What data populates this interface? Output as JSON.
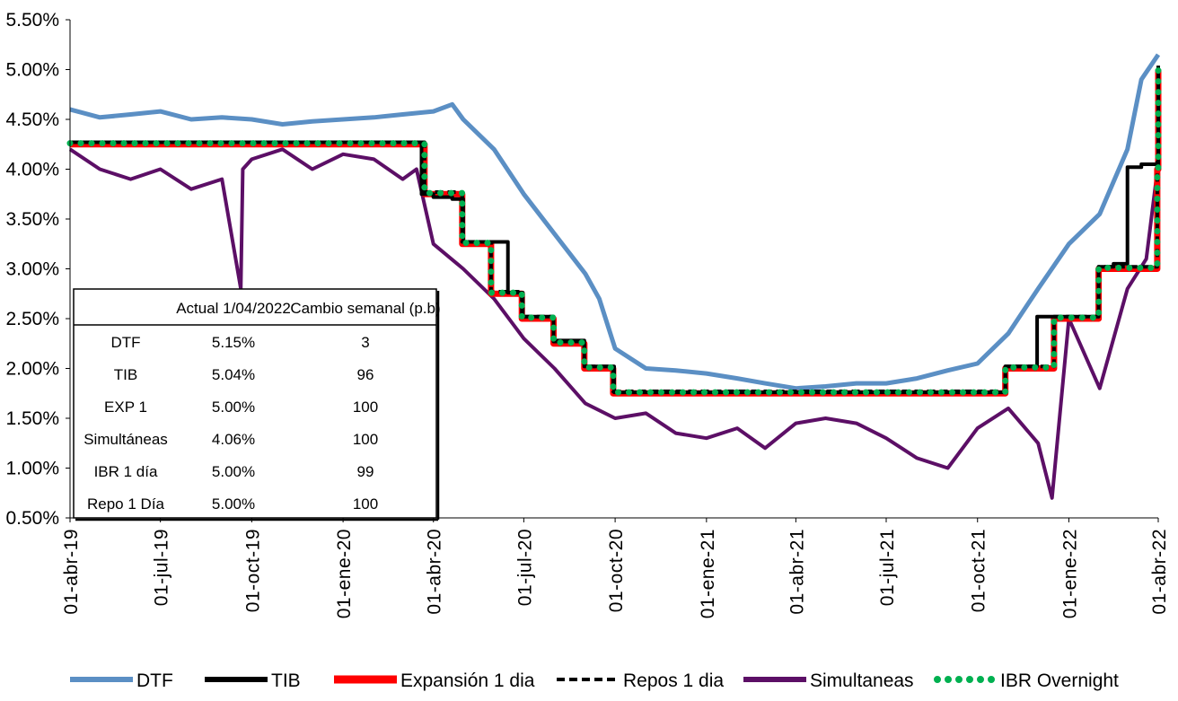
{
  "chart_data": {
    "type": "line",
    "yticks": [
      "5.50%",
      "5.00%",
      "4.50%",
      "4.00%",
      "3.50%",
      "3.00%",
      "2.50%",
      "2.00%",
      "1.50%",
      "1.00%",
      "0.50%"
    ],
    "ylim": [
      0.5,
      5.5
    ],
    "xlim": [
      "2019-04-01",
      "2022-04-01"
    ],
    "xticks": [
      {
        "label": "01-abr-19",
        "date": "2019-04-01"
      },
      {
        "label": "01-jul-19",
        "date": "2019-07-01"
      },
      {
        "label": "01-oct-19",
        "date": "2019-10-01"
      },
      {
        "label": "01-ene-20",
        "date": "2020-01-01"
      },
      {
        "label": "01-abr-20",
        "date": "2020-04-01"
      },
      {
        "label": "01-jul-20",
        "date": "2020-07-01"
      },
      {
        "label": "01-oct-20",
        "date": "2020-10-01"
      },
      {
        "label": "01-ene-21",
        "date": "2021-01-01"
      },
      {
        "label": "01-abr-21",
        "date": "2021-04-01"
      },
      {
        "label": "01-jul-21",
        "date": "2021-07-01"
      },
      {
        "label": "01-oct-21",
        "date": "2021-10-01"
      },
      {
        "label": "01-ene-22",
        "date": "2022-01-01"
      },
      {
        "label": "01-abr-22",
        "date": "2022-04-01"
      }
    ],
    "series": [
      {
        "name": "DTF",
        "color": "#5b8fc4",
        "style": "solid",
        "x": [
          "2019-04-01",
          "2019-05-01",
          "2019-06-01",
          "2019-07-01",
          "2019-08-01",
          "2019-09-01",
          "2019-10-01",
          "2019-11-01",
          "2019-12-01",
          "2020-01-01",
          "2020-02-01",
          "2020-03-01",
          "2020-04-01",
          "2020-04-20",
          "2020-05-01",
          "2020-06-01",
          "2020-07-01",
          "2020-08-01",
          "2020-09-01",
          "2020-09-15",
          "2020-10-01",
          "2020-11-01",
          "2020-12-01",
          "2021-01-01",
          "2021-02-01",
          "2021-03-01",
          "2021-04-01",
          "2021-05-01",
          "2021-06-01",
          "2021-07-01",
          "2021-08-01",
          "2021-09-01",
          "2021-10-01",
          "2021-11-01",
          "2021-12-01",
          "2022-01-01",
          "2022-02-01",
          "2022-03-01",
          "2022-03-15",
          "2022-04-01"
        ],
        "values": [
          4.6,
          4.52,
          4.55,
          4.58,
          4.5,
          4.52,
          4.5,
          4.45,
          4.48,
          4.5,
          4.52,
          4.55,
          4.58,
          4.65,
          4.5,
          4.2,
          3.75,
          3.35,
          2.95,
          2.7,
          2.2,
          2.0,
          1.98,
          1.95,
          1.9,
          1.85,
          1.8,
          1.82,
          1.85,
          1.85,
          1.9,
          1.98,
          2.05,
          2.35,
          2.8,
          3.25,
          3.55,
          4.2,
          4.9,
          5.15
        ]
      },
      {
        "name": "TIB",
        "color": "#000000",
        "style": "solid",
        "x": [
          "2019-04-01",
          "2020-03-15",
          "2020-03-20",
          "2020-04-01",
          "2020-04-20",
          "2020-05-01",
          "2020-05-29",
          "2020-06-15",
          "2020-06-30",
          "2020-07-31",
          "2020-08-31",
          "2020-09-30",
          "2021-09-30",
          "2021-10-29",
          "2021-11-30",
          "2021-12-17",
          "2022-01-31",
          "2022-02-15",
          "2022-03-01",
          "2022-03-15",
          "2022-03-31",
          "2022-04-01"
        ],
        "values": [
          4.27,
          4.27,
          3.75,
          3.72,
          3.7,
          3.27,
          3.27,
          2.76,
          2.52,
          2.28,
          2.02,
          1.76,
          1.76,
          2.02,
          2.52,
          2.52,
          3.02,
          3.05,
          4.02,
          4.05,
          4.07,
          5.04
        ]
      },
      {
        "name": "Expansión 1 dia",
        "color": "#ff0000",
        "style": "solid",
        "x": [
          "2019-04-01",
          "2020-03-15",
          "2020-03-23",
          "2020-04-30",
          "2020-05-29",
          "2020-06-29",
          "2020-07-31",
          "2020-08-31",
          "2020-09-29",
          "2021-09-30",
          "2021-10-29",
          "2021-12-17",
          "2022-01-31",
          "2022-03-31",
          "2022-04-01"
        ],
        "values": [
          4.25,
          4.25,
          3.75,
          3.25,
          2.75,
          2.5,
          2.25,
          2.0,
          1.75,
          1.75,
          2.0,
          2.5,
          3.0,
          4.0,
          5.0
        ]
      },
      {
        "name": "Repos 1 dia",
        "color": "#000000",
        "style": "dashed",
        "x": [
          "2019-04-01",
          "2020-03-15",
          "2020-03-23",
          "2020-04-30",
          "2020-05-29",
          "2020-06-29",
          "2020-07-31",
          "2020-08-31",
          "2020-09-29",
          "2021-09-30",
          "2021-10-29",
          "2021-12-17",
          "2022-01-31",
          "2022-03-31",
          "2022-04-01"
        ],
        "values": [
          4.27,
          4.27,
          3.77,
          3.27,
          2.77,
          2.52,
          2.27,
          2.02,
          1.77,
          1.77,
          2.02,
          2.52,
          3.02,
          4.02,
          5.0
        ]
      },
      {
        "name": "Simultaneas",
        "color": "#5c0f66",
        "style": "solid",
        "x": [
          "2019-04-01",
          "2019-05-01",
          "2019-06-01",
          "2019-07-01",
          "2019-08-01",
          "2019-09-01",
          "2019-09-20",
          "2019-09-22",
          "2019-10-01",
          "2019-11-01",
          "2019-12-01",
          "2020-01-01",
          "2020-02-01",
          "2020-03-01",
          "2020-03-15",
          "2020-04-01",
          "2020-05-01",
          "2020-06-01",
          "2020-07-01",
          "2020-08-01",
          "2020-09-01",
          "2020-10-01",
          "2020-11-01",
          "2020-12-01",
          "2021-01-01",
          "2021-02-01",
          "2021-03-01",
          "2021-04-01",
          "2021-05-01",
          "2021-06-01",
          "2021-07-01",
          "2021-08-01",
          "2021-09-01",
          "2021-10-01",
          "2021-11-01",
          "2021-12-01",
          "2021-12-15",
          "2022-01-01",
          "2022-02-01",
          "2022-03-01",
          "2022-03-20",
          "2022-04-01"
        ],
        "values": [
          4.2,
          4.0,
          3.9,
          4.0,
          3.8,
          3.9,
          2.8,
          4.0,
          4.1,
          4.2,
          4.0,
          4.15,
          4.1,
          3.9,
          4.0,
          3.25,
          3.0,
          2.7,
          2.3,
          2.0,
          1.65,
          1.5,
          1.55,
          1.35,
          1.3,
          1.4,
          1.2,
          1.45,
          1.5,
          1.45,
          1.3,
          1.1,
          1.0,
          1.4,
          1.6,
          1.25,
          0.7,
          2.5,
          1.8,
          2.8,
          3.1,
          4.06
        ]
      },
      {
        "name": "IBR Overnight",
        "color": "#00b050",
        "style": "dotted",
        "x": [
          "2019-04-01",
          "2020-03-15",
          "2020-03-23",
          "2020-04-30",
          "2020-05-29",
          "2020-06-29",
          "2020-07-31",
          "2020-08-31",
          "2020-09-29",
          "2021-09-30",
          "2021-10-29",
          "2021-12-17",
          "2022-01-31",
          "2022-03-31",
          "2022-04-01"
        ],
        "values": [
          4.26,
          4.26,
          3.76,
          3.26,
          2.76,
          2.51,
          2.26,
          2.01,
          1.76,
          1.76,
          2.01,
          2.51,
          3.01,
          3.99,
          5.0
        ]
      }
    ],
    "table": {
      "headers": [
        "",
        "Actual 1/04/2022",
        "Cambio semanal (p.b)"
      ],
      "rows": [
        [
          "DTF",
          "5.15%",
          "3"
        ],
        [
          "TIB",
          "5.04%",
          "96"
        ],
        [
          "EXP 1",
          "5.00%",
          "100"
        ],
        [
          "Simultáneas",
          "4.06%",
          "100"
        ],
        [
          "IBR 1 día",
          "5.00%",
          "99"
        ],
        [
          "Repo 1 Día",
          "5.00%",
          "100"
        ]
      ]
    },
    "legend": {
      "placement": "bottom",
      "entries": [
        "DTF",
        "TIB",
        "Expansión 1 dia",
        "Repos 1 dia",
        "Simultaneas",
        "IBR Overnight"
      ]
    }
  }
}
